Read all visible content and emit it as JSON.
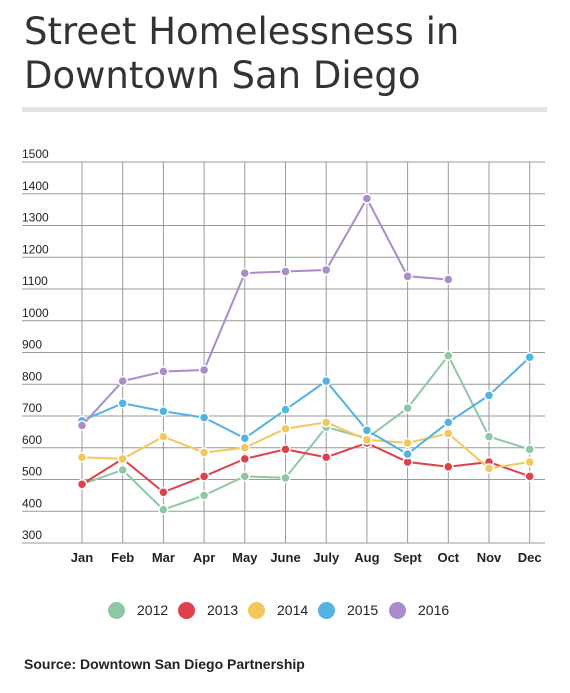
{
  "header": {
    "title_line1": "Street Homelessness in",
    "title_line2": "Downtown San Diego"
  },
  "source": "Source: Downtown San Diego Partnership",
  "chart_data": {
    "type": "line",
    "title": "Street Homelessness in Downtown San Diego",
    "categories": [
      "Jan",
      "Feb",
      "Mar",
      "Apr",
      "May",
      "June",
      "July",
      "Aug",
      "Sept",
      "Oct",
      "Nov",
      "Dec"
    ],
    "ylim": [
      300,
      1500
    ],
    "yticks": [
      300,
      400,
      500,
      600,
      700,
      800,
      900,
      1000,
      1100,
      1200,
      1300,
      1400,
      1500
    ],
    "grid": true,
    "legend_position": "bottom",
    "series": [
      {
        "name": "2012",
        "color": "#8ec8a3",
        "values": [
          485,
          530,
          405,
          450,
          510,
          505,
          665,
          630,
          725,
          890,
          635,
          595
        ]
      },
      {
        "name": "2013",
        "color": "#e0404a",
        "values": [
          485,
          565,
          460,
          510,
          565,
          595,
          570,
          615,
          555,
          540,
          555,
          510
        ]
      },
      {
        "name": "2014",
        "color": "#f2c75c",
        "values": [
          570,
          565,
          635,
          585,
          600,
          660,
          680,
          625,
          615,
          645,
          535,
          555
        ]
      },
      {
        "name": "2015",
        "color": "#52b3e3",
        "values": [
          685,
          740,
          715,
          695,
          630,
          720,
          810,
          655,
          580,
          680,
          765,
          885
        ]
      },
      {
        "name": "2016",
        "color": "#a98cc9",
        "values": [
          670,
          810,
          840,
          845,
          1150,
          1155,
          1160,
          1385,
          1140,
          1130,
          null,
          null
        ]
      }
    ]
  }
}
